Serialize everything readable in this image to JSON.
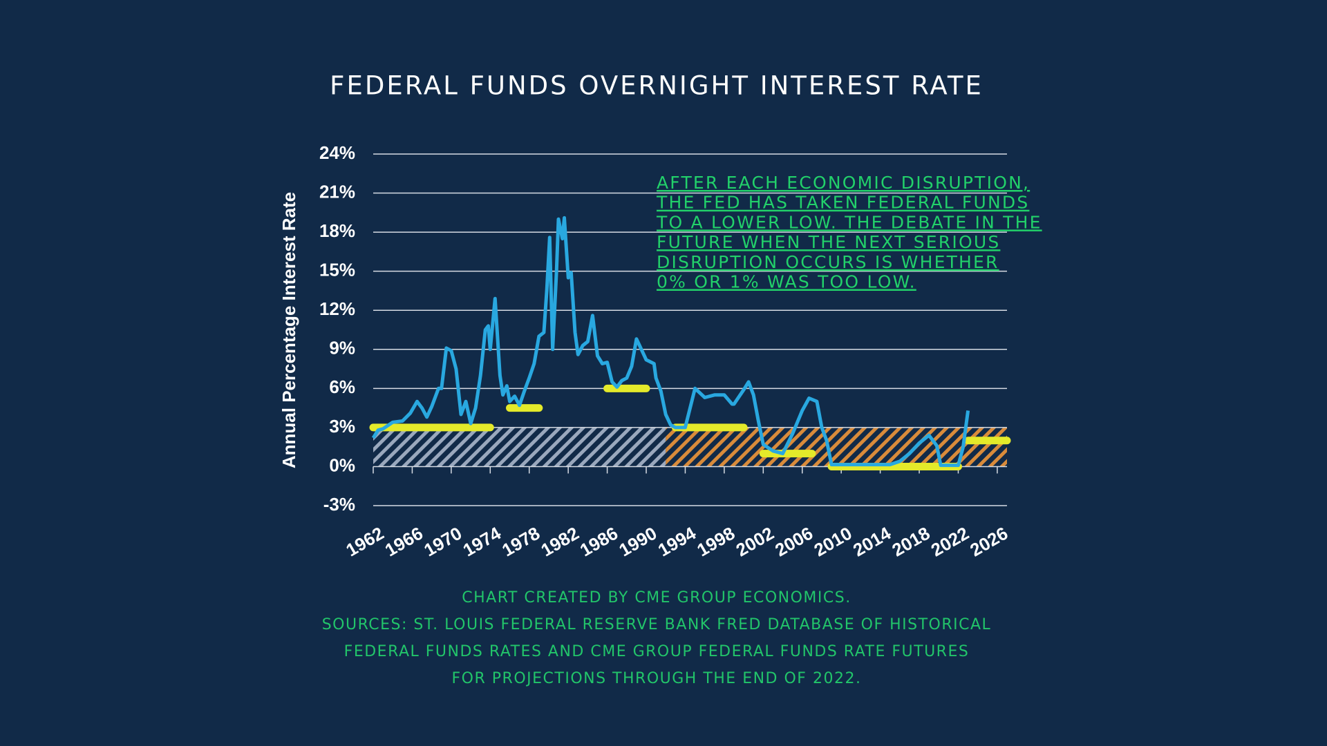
{
  "chart_data": {
    "type": "line",
    "title": "FEDERAL FUNDS OVERNIGHT INTEREST RATE",
    "ylabel": "Annual Percentage Interest Rate",
    "annotation": [
      "AFTER EACH ECONOMIC DISRUPTION,",
      "THE FED HAS TAKEN FEDERAL FUNDS",
      "TO A LOWER LOW. THE DEBATE IN THE",
      "FUTURE WHEN THE NEXT SERIOUS",
      "DISRUPTION OCCURS IS WHETHER",
      "0% OR 1% WAS TOO LOW."
    ],
    "footer": [
      "CHART CREATED BY CME GROUP ECONOMICS.",
      "SOURCES:  ST. LOUIS FEDERAL RESERVE BANK FRED DATABASE OF HISTORICAL",
      "FEDERAL FUNDS RATES AND CME GROUP FEDERAL FUNDS RATE FUTURES",
      "FOR PROJECTIONS THROUGH THE END OF 2022."
    ],
    "xlim": [
      1962,
      2027
    ],
    "xticks": [
      1962,
      1966,
      1970,
      1974,
      1978,
      1982,
      1986,
      1990,
      1994,
      1998,
      2002,
      2006,
      2010,
      2014,
      2018,
      2022,
      2026
    ],
    "ylim": [
      -3,
      24
    ],
    "yticks": [
      {
        "value": -3,
        "label": "-3%"
      },
      {
        "value": 0,
        "label": "0%"
      },
      {
        "value": 3,
        "label": "3%"
      },
      {
        "value": 6,
        "label": "6%"
      },
      {
        "value": 9,
        "label": "9%"
      },
      {
        "value": 12,
        "label": "12%"
      },
      {
        "value": 15,
        "label": "15%"
      },
      {
        "value": 18,
        "label": "18%"
      },
      {
        "value": 21,
        "label": "21%"
      },
      {
        "value": 24,
        "label": "24%"
      }
    ],
    "grid": true,
    "series": [
      {
        "color": "#29a8e0",
        "x": [
          1962,
          1962.5,
          1963,
          1964,
          1965,
          1965.8,
          1966.5,
          1967,
          1967.5,
          1968,
          1968.7,
          1969,
          1969.5,
          1970,
          1970.5,
          1971,
          1971.5,
          1972,
          1972.5,
          1973,
          1973.5,
          1973.8,
          1974,
          1974.5,
          1975,
          1975.3,
          1975.7,
          1976,
          1976.5,
          1977,
          1977.5,
          1978,
          1978.5,
          1979,
          1979.5,
          1979.8,
          1980.1,
          1980.4,
          1980.8,
          1981,
          1981.4,
          1981.6,
          1982,
          1982.3,
          1982.7,
          1983,
          1983.5,
          1984,
          1984.5,
          1985,
          1985.5,
          1986,
          1986.5,
          1987,
          1987.5,
          1988,
          1988.5,
          1989,
          1989.5,
          1990,
          1990.8,
          1991,
          1991.5,
          1992,
          1992.5,
          1993,
          1994,
          1994.5,
          1995,
          1996,
          1997,
          1998,
          1998.8,
          1999,
          2000,
          2000.5,
          2001,
          2001.5,
          2002,
          2003,
          2004,
          2005,
          2006,
          2006.7,
          2007.5,
          2008,
          2008.5,
          2009,
          2010,
          2015,
          2016,
          2017,
          2018,
          2019,
          2019.8,
          2020.2,
          2022,
          2022.5,
          2023
        ],
        "values": [
          2.2,
          2.8,
          2.9,
          3.4,
          3.5,
          4.1,
          5.0,
          4.5,
          3.8,
          4.6,
          6.0,
          6.0,
          9.1,
          8.9,
          7.5,
          4.0,
          5.0,
          3.3,
          4.5,
          7.0,
          10.5,
          10.8,
          9.0,
          12.9,
          7.0,
          5.5,
          6.2,
          5.0,
          5.4,
          4.7,
          5.8,
          6.8,
          7.9,
          10.0,
          10.3,
          13.5,
          17.6,
          9.0,
          15.0,
          19.0,
          17.5,
          19.1,
          14.5,
          14.9,
          10.3,
          8.6,
          9.3,
          9.6,
          11.6,
          8.5,
          7.9,
          8.0,
          6.5,
          6.1,
          6.6,
          6.8,
          7.7,
          9.8,
          9.0,
          8.2,
          7.9,
          6.8,
          5.8,
          4.0,
          3.2,
          3.0,
          3.0,
          4.5,
          6.0,
          5.3,
          5.5,
          5.5,
          4.8,
          4.8,
          5.9,
          6.5,
          5.5,
          3.5,
          1.7,
          1.2,
          1.0,
          2.5,
          4.3,
          5.25,
          5.0,
          3.0,
          2.0,
          0.15,
          0.15,
          0.15,
          0.4,
          1.0,
          1.8,
          2.4,
          1.6,
          0.1,
          0.1,
          1.5,
          4.3
        ]
      }
    ],
    "lows": {
      "color": "#e4ea2a",
      "segments": [
        {
          "start": 1962,
          "end": 1974,
          "value": 3
        },
        {
          "start": 1976,
          "end": 1979,
          "value": 4.5
        },
        {
          "start": 1986,
          "end": 1990,
          "value": 6
        },
        {
          "start": 1993,
          "end": 2000,
          "value": 3
        },
        {
          "start": 2002,
          "end": 2007,
          "value": 1
        },
        {
          "start": 2009,
          "end": 2022,
          "value": 0
        },
        {
          "start": 2023,
          "end": 2027,
          "value": 2
        }
      ]
    },
    "bands": [
      {
        "x0": 1962,
        "x1": 1992,
        "y0": 0,
        "y1": 3,
        "color": "#9aa8bd"
      },
      {
        "x0": 1992,
        "x1": 2027,
        "y0": 0,
        "y1": 3,
        "color": "#d98b3a"
      }
    ]
  }
}
